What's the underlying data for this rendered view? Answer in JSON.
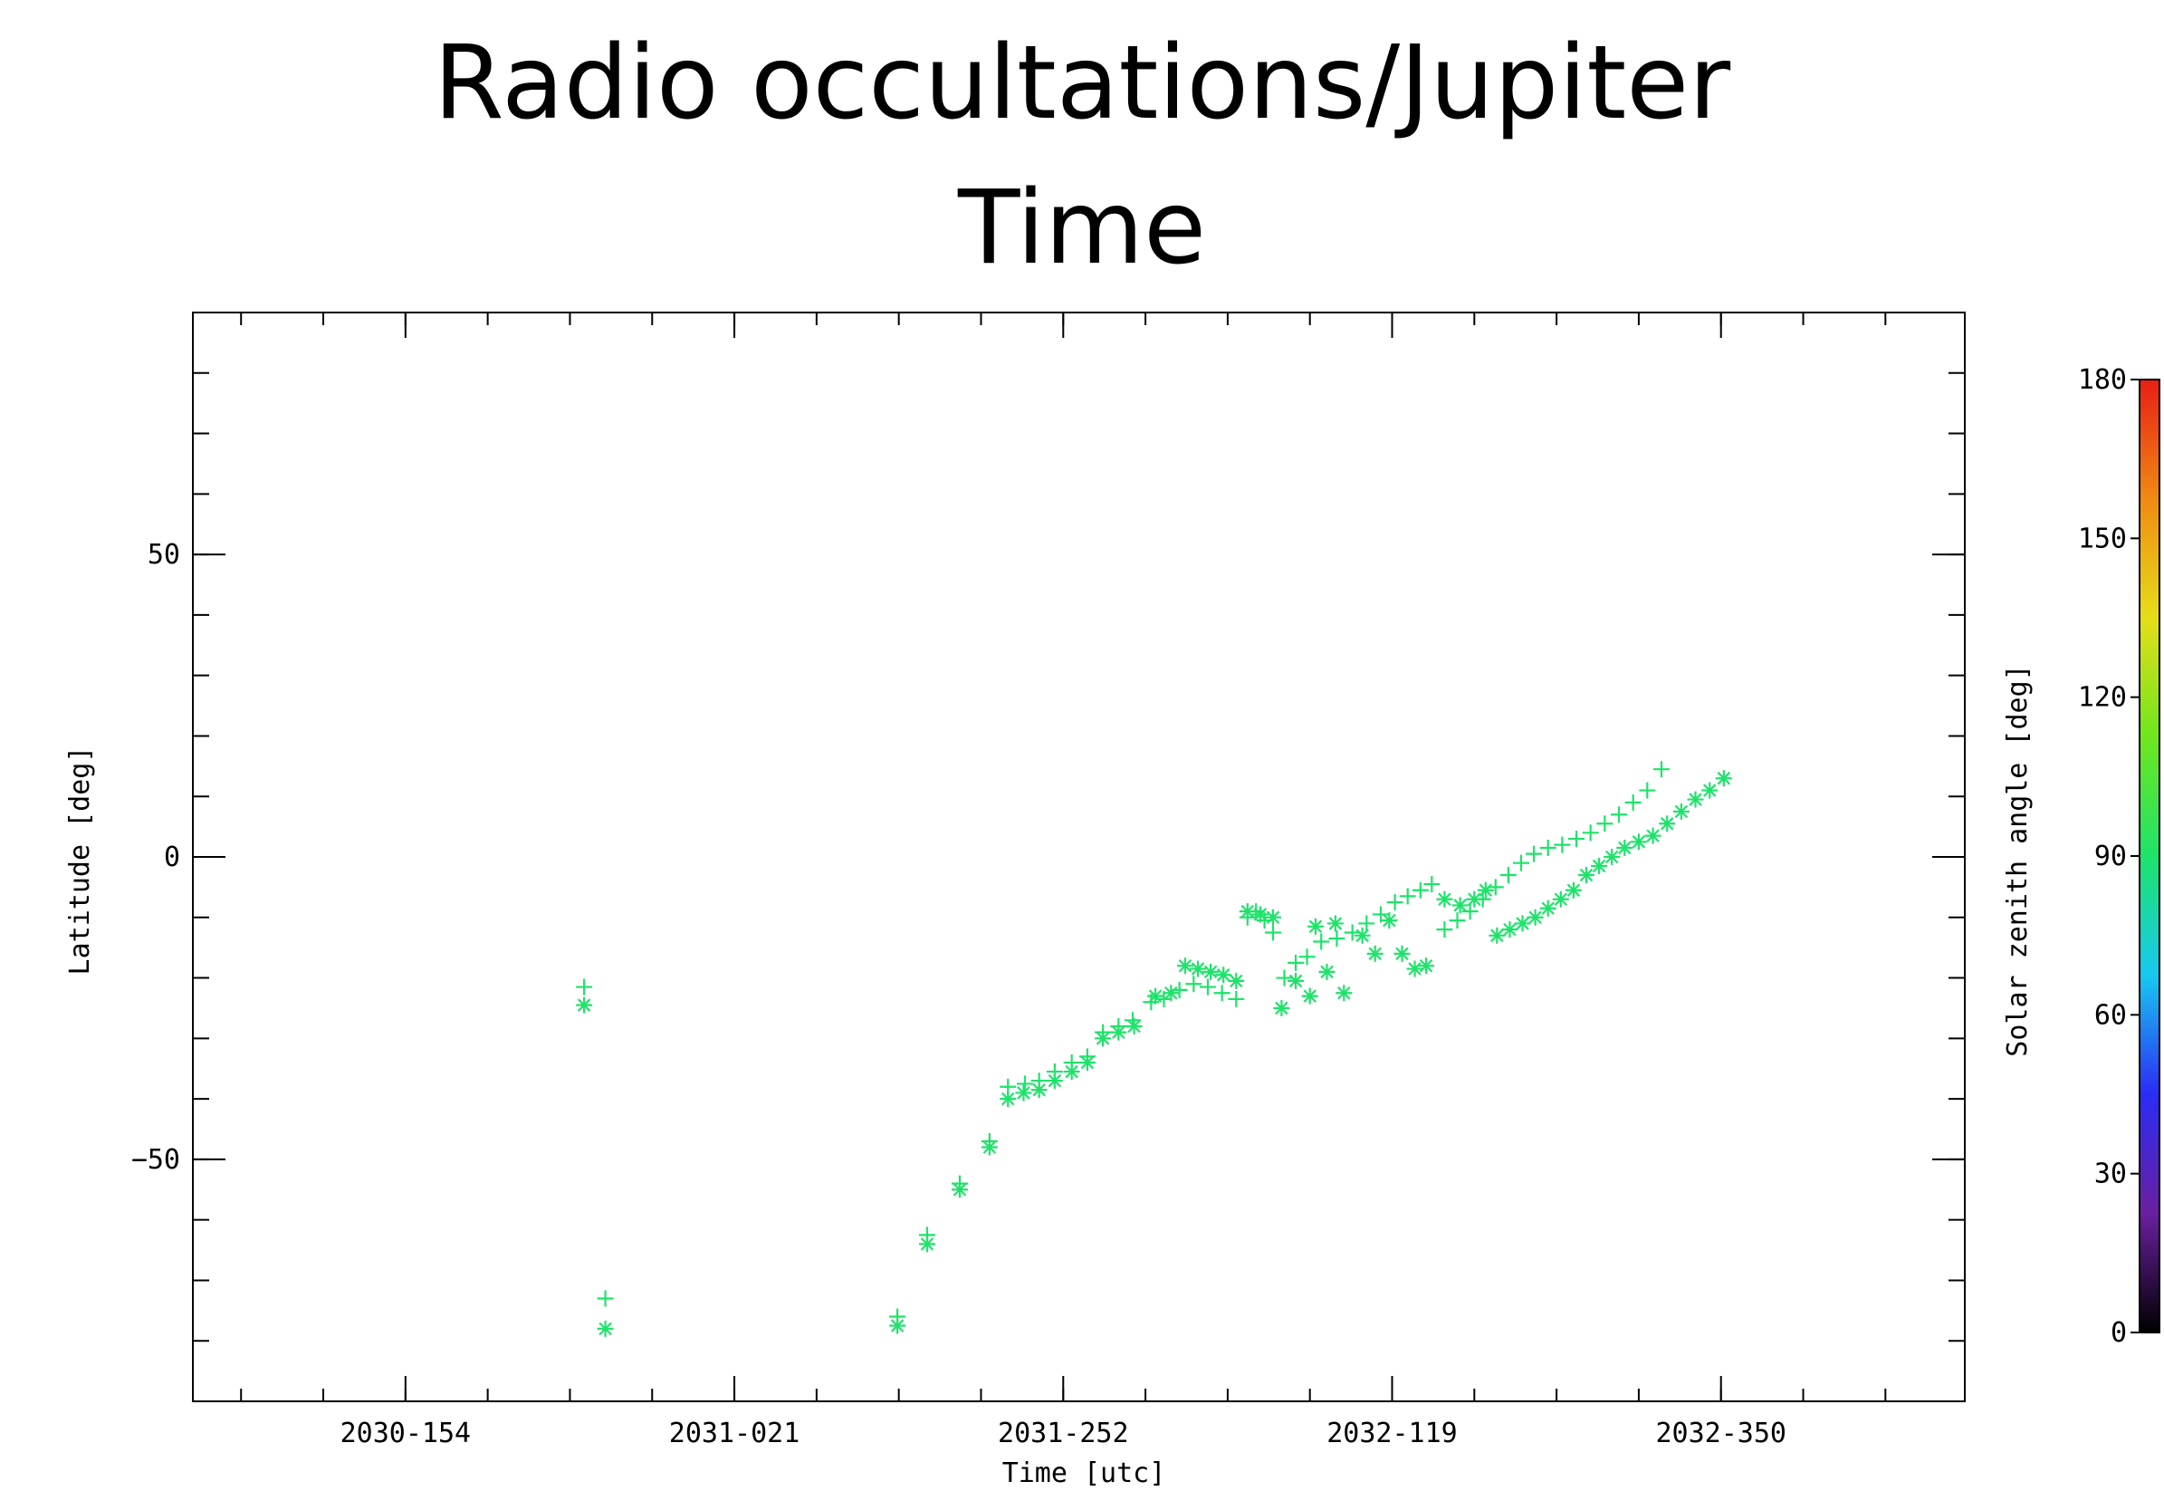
{
  "slide": {
    "title_line1": "Radio occultations/Jupiter",
    "title_line2": "Time"
  },
  "chart_data": {
    "type": "scatter",
    "title": "Radio occultations/Jupiter Time",
    "xlabel": "Time [utc]",
    "ylabel": "Latitude [deg]",
    "x_ticks": [
      "2030-154",
      "2031-021",
      "2031-252",
      "2032-119",
      "2032-350"
    ],
    "x_tick_positions": [
      0,
      232,
      464,
      696,
      928
    ],
    "xlim": [
      -150,
      1100
    ],
    "y_ticks": [
      50,
      0,
      -50
    ],
    "ylim": [
      -90,
      90
    ],
    "markers": [
      "+",
      "*"
    ],
    "colorbar": {
      "label": "Solar zenith angle [deg]",
      "ticks": [
        0,
        30,
        60,
        90,
        120,
        150,
        180
      ],
      "range": [
        0,
        180
      ],
      "colors": [
        "#000000",
        "#6a1fa0",
        "#2a2cf5",
        "#18c8f0",
        "#1ee36a",
        "#6ee61e",
        "#e6dd1a",
        "#f08a14",
        "#e81e14"
      ]
    },
    "series": [
      {
        "marker": "+",
        "color": "#1ee36a",
        "points": [
          [
            126,
            -21.5
          ],
          [
            141,
            -73
          ],
          [
            347,
            -76
          ],
          [
            368,
            -62.5
          ],
          [
            391,
            -54
          ],
          [
            412,
            -47
          ],
          [
            425,
            -38
          ],
          [
            437,
            -37.5
          ],
          [
            447,
            -37
          ],
          [
            458,
            -35.5
          ],
          [
            470,
            -34
          ],
          [
            481,
            -33
          ],
          [
            492,
            -29
          ],
          [
            503,
            -28
          ],
          [
            513,
            -27
          ],
          [
            526,
            -24
          ],
          [
            535,
            -23.5
          ],
          [
            546,
            -22
          ],
          [
            556,
            -21
          ],
          [
            566,
            -21.5
          ],
          [
            576,
            -22.5
          ],
          [
            586,
            -23.5
          ],
          [
            594,
            -10
          ],
          [
            600,
            -9
          ],
          [
            606,
            -10.5
          ],
          [
            612,
            -12.5
          ],
          [
            620,
            -20
          ],
          [
            628,
            -17.5
          ],
          [
            636,
            -16.5
          ],
          [
            646,
            -14
          ],
          [
            657,
            -13.5
          ],
          [
            668,
            -12.5
          ],
          [
            678,
            -11
          ],
          [
            688,
            -9.5
          ],
          [
            698,
            -7.5
          ],
          [
            707,
            -6.5
          ],
          [
            716,
            -5.5
          ],
          [
            724,
            -4.5
          ],
          [
            733,
            -12
          ],
          [
            742,
            -10.5
          ],
          [
            751,
            -9
          ],
          [
            760,
            -7
          ],
          [
            769,
            -5
          ],
          [
            778,
            -3
          ],
          [
            787,
            -1
          ],
          [
            796,
            0.5
          ],
          [
            806,
            1.5
          ],
          [
            816,
            2
          ],
          [
            826,
            3
          ],
          [
            836,
            4
          ],
          [
            846,
            5.5
          ],
          [
            856,
            7
          ],
          [
            866,
            9
          ],
          [
            876,
            11
          ],
          [
            886,
            14.5
          ]
        ]
      },
      {
        "marker": "*",
        "color": "#1ee36a",
        "points": [
          [
            126,
            -24.5
          ],
          [
            141,
            -78
          ],
          [
            347,
            -77.5
          ],
          [
            368,
            -64
          ],
          [
            391,
            -55
          ],
          [
            412,
            -48
          ],
          [
            425,
            -40
          ],
          [
            436,
            -39
          ],
          [
            447,
            -38.5
          ],
          [
            458,
            -37
          ],
          [
            470,
            -35.5
          ],
          [
            481,
            -34
          ],
          [
            492,
            -30
          ],
          [
            503,
            -29
          ],
          [
            514,
            -28
          ],
          [
            529,
            -23
          ],
          [
            540,
            -22.5
          ],
          [
            550,
            -18
          ],
          [
            559,
            -18.5
          ],
          [
            568,
            -19
          ],
          [
            577,
            -19.5
          ],
          [
            586,
            -20.5
          ],
          [
            594,
            -9
          ],
          [
            603,
            -9.5
          ],
          [
            612,
            -10
          ],
          [
            618,
            -25
          ],
          [
            628,
            -20.5
          ],
          [
            642,
            -11.5
          ],
          [
            656,
            -11
          ],
          [
            638,
            -23
          ],
          [
            650,
            -19
          ],
          [
            662,
            -22.5
          ],
          [
            675,
            -13
          ],
          [
            684,
            -16
          ],
          [
            694,
            -10.5
          ],
          [
            703,
            -16
          ],
          [
            712,
            -18.5
          ],
          [
            720,
            -18
          ],
          [
            733,
            -7
          ],
          [
            744,
            -8
          ],
          [
            754,
            -7
          ],
          [
            762,
            -5.5
          ],
          [
            770,
            -13
          ],
          [
            779,
            -12
          ],
          [
            788,
            -11
          ],
          [
            797,
            -10
          ],
          [
            806,
            -8.5
          ],
          [
            815,
            -7
          ],
          [
            824,
            -5.5
          ],
          [
            833,
            -3
          ],
          [
            842,
            -1.5
          ],
          [
            851,
            0
          ],
          [
            860,
            1.5
          ],
          [
            870,
            2.5
          ],
          [
            880,
            3.5
          ],
          [
            890,
            5.5
          ],
          [
            900,
            7.5
          ],
          [
            910,
            9.5
          ],
          [
            920,
            11
          ],
          [
            930,
            13
          ]
        ]
      }
    ]
  }
}
